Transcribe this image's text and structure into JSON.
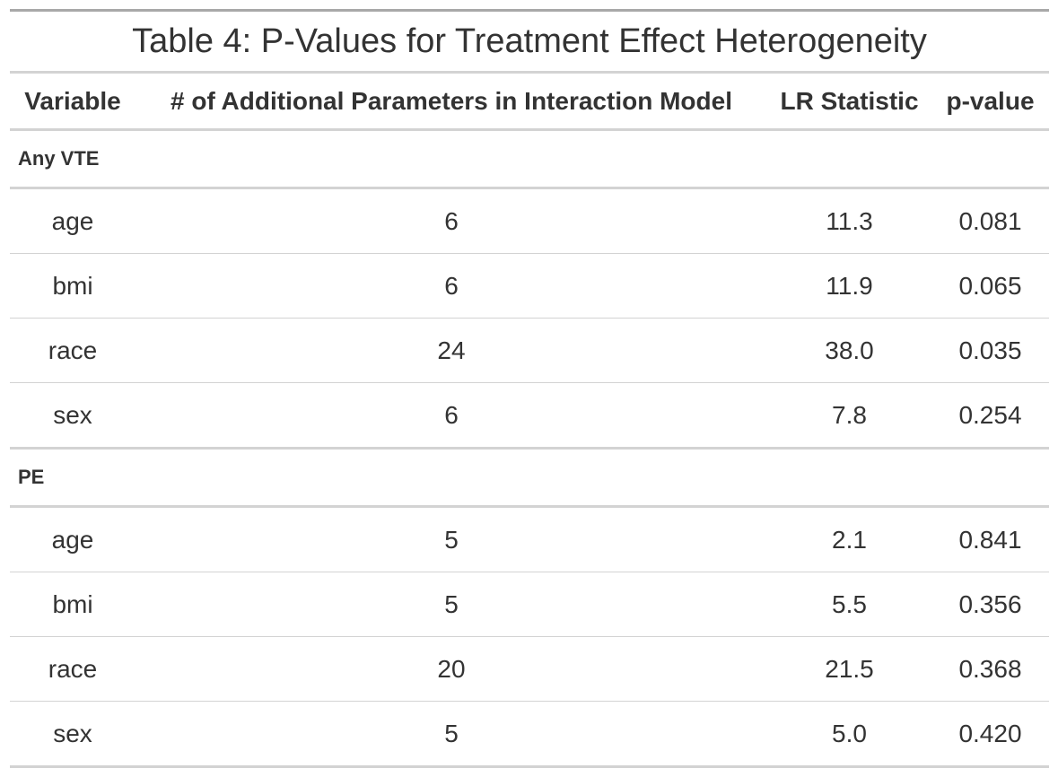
{
  "caption": "Table 4: P-Values for Treatment Effect Heterogeneity",
  "columns": [
    "Variable",
    "# of Additional Parameters in Interaction Model",
    "LR Statistic",
    "p-value"
  ],
  "groups": [
    {
      "label": "Any VTE",
      "rows": [
        [
          "age",
          "6",
          "11.3",
          "0.081"
        ],
        [
          "bmi",
          "6",
          "11.9",
          "0.065"
        ],
        [
          "race",
          "24",
          "38.0",
          "0.035"
        ],
        [
          "sex",
          "6",
          "7.8",
          "0.254"
        ]
      ]
    },
    {
      "label": "PE",
      "rows": [
        [
          "age",
          "5",
          "2.1",
          "0.841"
        ],
        [
          "bmi",
          "5",
          "5.5",
          "0.356"
        ],
        [
          "race",
          "20",
          "21.5",
          "0.368"
        ],
        [
          "sex",
          "5",
          "5.0",
          "0.420"
        ]
      ]
    }
  ]
}
